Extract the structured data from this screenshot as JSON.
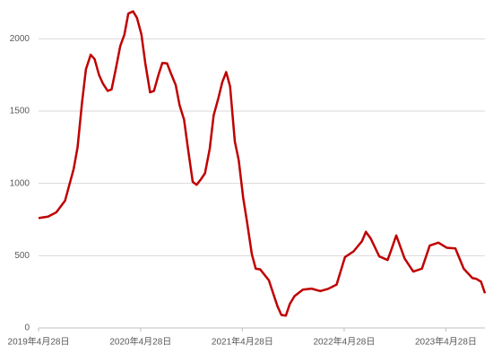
{
  "chart_data": {
    "type": "line",
    "x": [
      "2019-04-28",
      "2019-06-01",
      "2019-07-01",
      "2019-08-01",
      "2019-09-01",
      "2019-09-15",
      "2019-10-01",
      "2019-10-15",
      "2019-11-01",
      "2019-11-15",
      "2019-12-01",
      "2019-12-15",
      "2020-01-01",
      "2020-01-15",
      "2020-02-01",
      "2020-02-15",
      "2020-03-01",
      "2020-03-15",
      "2020-04-01",
      "2020-04-15",
      "2020-05-01",
      "2020-05-15",
      "2020-06-01",
      "2020-06-15",
      "2020-07-01",
      "2020-07-15",
      "2020-08-01",
      "2020-08-15",
      "2020-09-01",
      "2020-09-15",
      "2020-10-01",
      "2020-10-15",
      "2020-11-01",
      "2020-11-15",
      "2020-12-01",
      "2020-12-15",
      "2021-01-01",
      "2021-01-15",
      "2021-02-01",
      "2021-02-15",
      "2021-03-01",
      "2021-03-15",
      "2021-04-01",
      "2021-04-15",
      "2021-05-01",
      "2021-05-15",
      "2021-06-01",
      "2021-06-15",
      "2021-07-01",
      "2021-08-01",
      "2021-09-01",
      "2021-09-15",
      "2021-10-01",
      "2021-10-15",
      "2021-11-01",
      "2021-12-01",
      "2022-01-01",
      "2022-02-01",
      "2022-03-01",
      "2022-04-01",
      "2022-05-01",
      "2022-06-01",
      "2022-07-01",
      "2022-07-15",
      "2022-08-01",
      "2022-09-01",
      "2022-10-01",
      "2022-10-15",
      "2022-11-01",
      "2022-12-01",
      "2023-01-01",
      "2023-02-01",
      "2023-03-01",
      "2023-04-01",
      "2023-05-01",
      "2023-06-01",
      "2023-07-01",
      "2023-08-01",
      "2023-08-15",
      "2023-09-01",
      "2023-09-15"
    ],
    "series": [
      {
        "color": "#c00000",
        "values": [
          760,
          770,
          800,
          880,
          1100,
          1250,
          1560,
          1790,
          1890,
          1860,
          1750,
          1690,
          1640,
          1650,
          1810,
          1950,
          2030,
          2175,
          2190,
          2145,
          2030,
          1830,
          1630,
          1640,
          1750,
          1833,
          1830,
          1760,
          1680,
          1540,
          1440,
          1240,
          1010,
          990,
          1030,
          1070,
          1240,
          1470,
          1590,
          1700,
          1770,
          1670,
          1290,
          1160,
          900,
          730,
          510,
          410,
          405,
          330,
          150,
          90,
          85,
          165,
          220,
          265,
          272,
          255,
          270,
          300,
          490,
          530,
          600,
          665,
          620,
          495,
          470,
          545,
          640,
          480,
          390,
          410,
          570,
          590,
          555,
          550,
          410,
          345,
          340,
          320,
          240
        ]
      }
    ],
    "xlim": [
      "2019-04-28",
      "2023-09-15"
    ],
    "xticks": [
      {
        "value": "2019-04-28",
        "label": "2019年4月28日"
      },
      {
        "value": "2020-04-28",
        "label": "2020年4月28日"
      },
      {
        "value": "2021-04-28",
        "label": "2021年4月28日"
      },
      {
        "value": "2022-04-28",
        "label": "2022年4月28日"
      },
      {
        "value": "2023-04-28",
        "label": "2023年4月28日"
      }
    ],
    "ylim": [
      0,
      2250
    ],
    "yticks": [
      0,
      500,
      1000,
      1500,
      2000
    ],
    "grid": true
  }
}
